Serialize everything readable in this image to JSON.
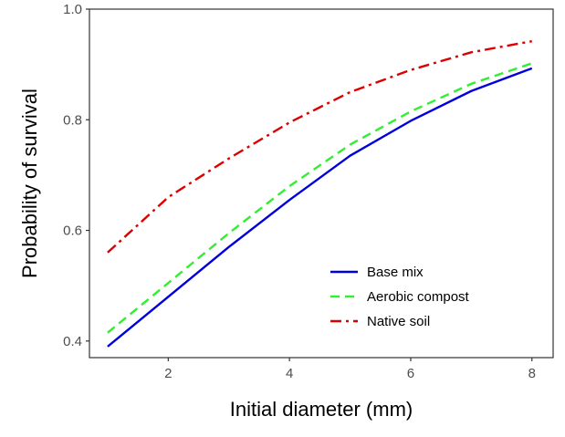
{
  "chart_data": {
    "type": "line",
    "title": "",
    "xlabel": "Initial diameter (mm)",
    "ylabel": "Probability of survival",
    "xlim": [
      0.7,
      8.35
    ],
    "ylim": [
      0.37,
      1.0
    ],
    "xticks": [
      2,
      4,
      6,
      8
    ],
    "yticks": [
      0.4,
      0.6,
      0.8,
      1.0
    ],
    "xtick_labels": [
      "2",
      "4",
      "6",
      "8"
    ],
    "ytick_labels": [
      "0.4",
      "0.6",
      "0.8",
      "1.0"
    ],
    "grid": false,
    "legend_position": "bottom-right",
    "x": [
      1,
      2,
      3,
      4,
      5,
      6,
      7,
      8
    ],
    "series": [
      {
        "name": "Base mix",
        "color": "#0000dd",
        "dash": "solid",
        "values": [
          0.39,
          0.48,
          0.57,
          0.655,
          0.735,
          0.798,
          0.852,
          0.893
        ]
      },
      {
        "name": "Aerobic compost",
        "color": "#33ee33",
        "dash": "dashed",
        "values": [
          0.415,
          0.505,
          0.595,
          0.68,
          0.755,
          0.815,
          0.865,
          0.902
        ]
      },
      {
        "name": "Native soil",
        "color": "#dd0000",
        "dash": "dashdot",
        "values": [
          0.56,
          0.66,
          0.73,
          0.795,
          0.85,
          0.89,
          0.922,
          0.942
        ]
      }
    ]
  }
}
